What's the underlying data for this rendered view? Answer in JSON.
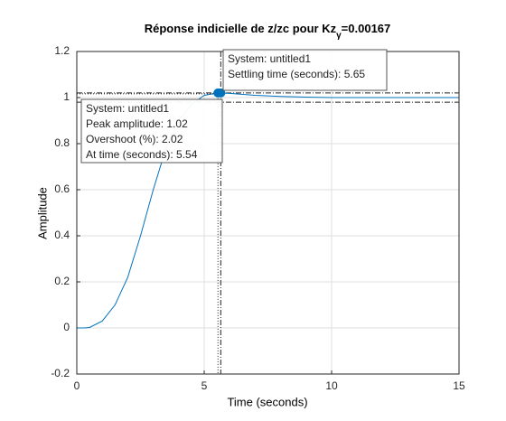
{
  "chart_data": {
    "type": "line",
    "title": "Réponse indicielle de z/zc pour Kz",
    "title_subscript": "γ",
    "title_suffix": "=0.00167",
    "xlabel": "Time (seconds)",
    "ylabel": "Amplitude",
    "x": [
      0,
      0.3,
      0.5,
      1,
      1.5,
      2,
      2.5,
      3,
      3.5,
      4,
      4.5,
      5,
      5.54,
      6,
      7,
      8,
      9,
      10,
      11,
      12,
      13,
      14,
      15
    ],
    "series": [
      {
        "name": "untitled1",
        "color": "#0072bd",
        "values": [
          0,
          0,
          0.002,
          0.03,
          0.1,
          0.22,
          0.4,
          0.6,
          0.78,
          0.9,
          0.97,
          1.01,
          1.02,
          1.018,
          1.01,
          1.005,
          1.002,
          1.0,
          1.0,
          1.0,
          1.0,
          1.0,
          1.0
        ]
      }
    ],
    "xlim": [
      0,
      15
    ],
    "ylim": [
      -0.2,
      1.2
    ],
    "xticks": [
      0,
      5,
      10,
      15
    ],
    "yticks": [
      -0.2,
      0,
      0.2,
      0.4,
      0.6,
      0.8,
      1,
      1.2
    ],
    "grid": true,
    "settling_band": [
      0.98,
      1.02
    ],
    "datatips": [
      {
        "x": 5.54,
        "y": 1.02,
        "lines": [
          "System: untitled1",
          "Peak amplitude: 1.02",
          "Overshoot (%): 2.02",
          "At time (seconds): 5.54"
        ]
      },
      {
        "x": 5.65,
        "y": 1.02,
        "lines": [
          "System: untitled1",
          "Settling time (seconds): 5.65"
        ]
      }
    ]
  }
}
